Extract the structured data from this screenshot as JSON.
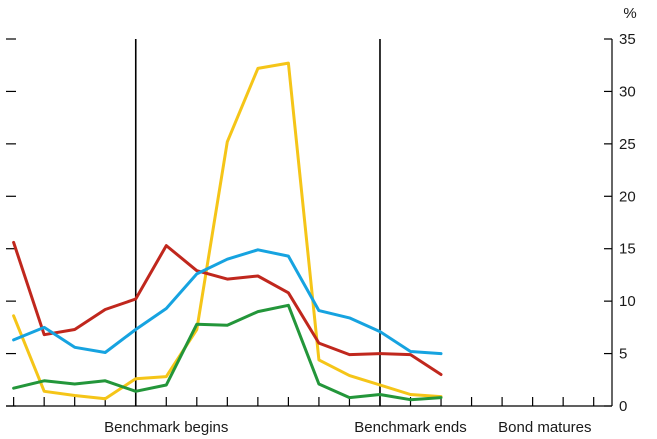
{
  "chart_data": {
    "type": "line",
    "title": "",
    "xlabel": "",
    "ylabel": "",
    "y_unit_label": "%",
    "y_axis_side": "right",
    "ylim": [
      0,
      35
    ],
    "y_ticks": [
      0,
      5,
      10,
      15,
      20,
      25,
      30,
      35
    ],
    "grid": false,
    "legend": "none",
    "x": [
      1,
      2,
      3,
      4,
      5,
      6,
      7,
      8,
      9,
      10,
      11,
      12,
      13,
      14,
      15,
      16,
      17,
      18,
      19,
      20
    ],
    "x_lim": [
      0.75,
      20.6
    ],
    "x_tick_marks": [
      1,
      2,
      3,
      4,
      5,
      6,
      7,
      8,
      9,
      10,
      11,
      12,
      13,
      14,
      15,
      16,
      17,
      18,
      19,
      20
    ],
    "x_labels": [
      {
        "x": 6,
        "text": "Benchmark begins"
      },
      {
        "x": 14,
        "text": "Benchmark ends"
      },
      {
        "x": 18.4,
        "text": "Bond matures"
      }
    ],
    "vertical_markers": [
      5,
      13
    ],
    "series": [
      {
        "color": "#f5c518",
        "values": [
          8.6,
          1.4,
          1.0,
          0.7,
          2.6,
          2.8,
          7.3,
          25.2,
          32.2,
          32.7,
          4.4,
          2.9,
          2.0,
          1.1,
          0.9,
          null,
          null,
          null,
          null,
          null
        ]
      },
      {
        "color": "#c0271d",
        "values": [
          15.6,
          6.8,
          7.3,
          9.2,
          10.2,
          15.3,
          12.9,
          12.1,
          12.4,
          10.8,
          6.0,
          4.9,
          5.0,
          4.9,
          3.0,
          null,
          null,
          null,
          null,
          null
        ]
      },
      {
        "color": "#16a3e0",
        "values": [
          6.3,
          7.5,
          5.6,
          5.1,
          7.3,
          9.3,
          12.6,
          14.0,
          14.9,
          14.3,
          9.1,
          8.4,
          7.1,
          5.2,
          5.0,
          null,
          null,
          null,
          null,
          null
        ]
      },
      {
        "color": "#23963a",
        "values": [
          1.7,
          2.4,
          2.1,
          2.4,
          1.4,
          2.0,
          7.8,
          7.7,
          9.0,
          9.6,
          2.1,
          0.8,
          1.1,
          0.6,
          0.8,
          null,
          null,
          null,
          null,
          null
        ]
      }
    ]
  }
}
